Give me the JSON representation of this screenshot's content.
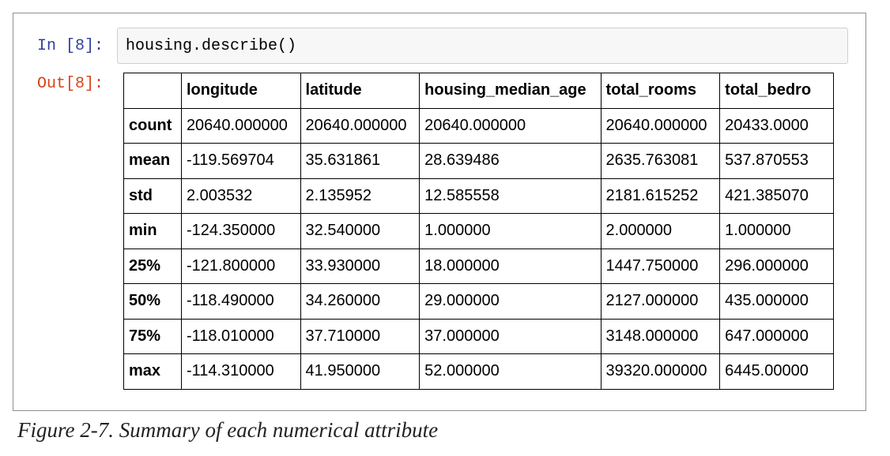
{
  "notebook": {
    "input_prompt": "In [8]:",
    "code": "housing.describe()",
    "output_prompt": "Out[8]:"
  },
  "table": {
    "corner": "",
    "columns": [
      "longitude",
      "latitude",
      "housing_median_age",
      "total_rooms",
      "total_bedro"
    ],
    "rows": [
      {
        "label": "count",
        "values": [
          "20640.000000",
          "20640.000000",
          "20640.000000",
          "20640.000000",
          "20433.0000"
        ]
      },
      {
        "label": "mean",
        "values": [
          "-119.569704",
          "35.631861",
          "28.639486",
          "2635.763081",
          "537.870553"
        ]
      },
      {
        "label": "std",
        "values": [
          "2.003532",
          "2.135952",
          "12.585558",
          "2181.615252",
          "421.385070"
        ]
      },
      {
        "label": "min",
        "values": [
          "-124.350000",
          "32.540000",
          "1.000000",
          "2.000000",
          "1.000000"
        ]
      },
      {
        "label": "25%",
        "values": [
          "-121.800000",
          "33.930000",
          "18.000000",
          "1447.750000",
          "296.000000"
        ]
      },
      {
        "label": "50%",
        "values": [
          "-118.490000",
          "34.260000",
          "29.000000",
          "2127.000000",
          "435.000000"
        ]
      },
      {
        "label": "75%",
        "values": [
          "-118.010000",
          "37.710000",
          "37.000000",
          "3148.000000",
          "647.000000"
        ]
      },
      {
        "label": "max",
        "values": [
          "-114.310000",
          "41.950000",
          "52.000000",
          "39320.000000",
          "6445.00000"
        ]
      }
    ]
  },
  "caption": "Figure 2-7. Summary of each numerical attribute"
}
